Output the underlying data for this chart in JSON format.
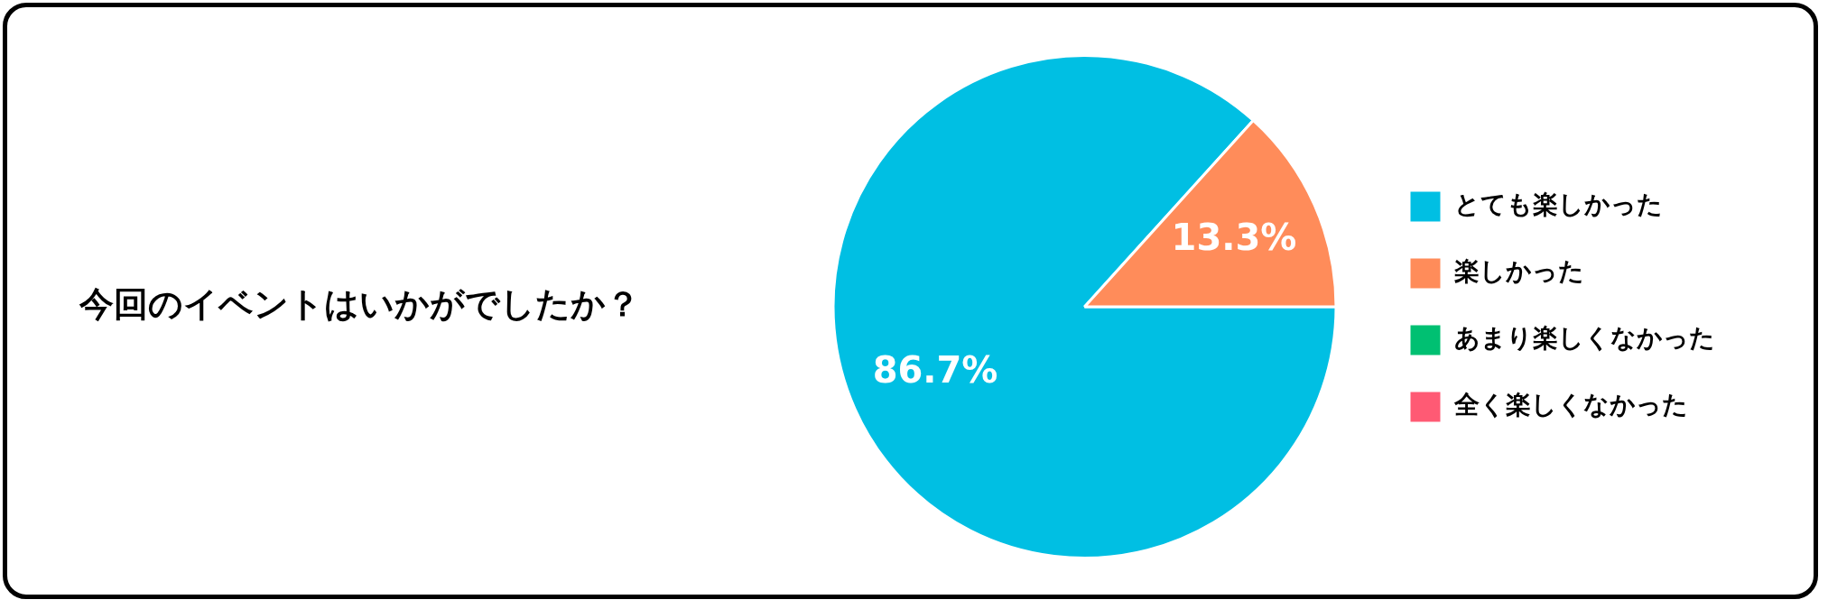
{
  "chart_data": {
    "type": "pie",
    "title": "今回のイベントはいかがでしたか？",
    "categories": [
      "とても楽しかった",
      "楽しかった",
      "あまり楽しくなかった",
      "全く楽しくなかった"
    ],
    "values": [
      86.7,
      13.3,
      0,
      0
    ],
    "colors": [
      "#00bfe3",
      "#ff8c5a",
      "#00c072",
      "#ff5a74"
    ],
    "value_labels": [
      "86.7%",
      "13.3%",
      null,
      null
    ],
    "legend": "right"
  }
}
